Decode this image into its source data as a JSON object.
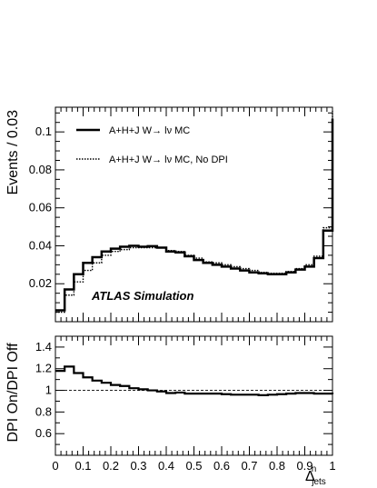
{
  "chart_data": [
    {
      "type": "step",
      "xlim": [
        0,
        1
      ],
      "ylim": [
        0,
        0.113
      ],
      "ylabel": "Events / 0.03",
      "yticks": [
        0.02,
        0.04,
        0.06,
        0.08,
        0.1
      ],
      "ytick_labels": [
        "0.02",
        "0.04",
        "0.06",
        "0.08",
        "0.1"
      ],
      "bin_edges": [
        0.0,
        0.0333,
        0.0667,
        0.1,
        0.1333,
        0.1667,
        0.2,
        0.2333,
        0.2667,
        0.3,
        0.3333,
        0.3667,
        0.4,
        0.4333,
        0.4667,
        0.5,
        0.5333,
        0.5667,
        0.6,
        0.6333,
        0.6667,
        0.7,
        0.7333,
        0.7667,
        0.8,
        0.8333,
        0.8667,
        0.9,
        0.9333,
        0.9667,
        1.0
      ],
      "series": [
        {
          "name": "A+H+J W→ lν MC",
          "style": "solid",
          "values": [
            0.006,
            0.017,
            0.025,
            0.031,
            0.034,
            0.037,
            0.0385,
            0.0395,
            0.04,
            0.0395,
            0.0398,
            0.039,
            0.037,
            0.0365,
            0.0345,
            0.0325,
            0.031,
            0.03,
            0.029,
            0.028,
            0.027,
            0.026,
            0.0255,
            0.025,
            0.025,
            0.026,
            0.0275,
            0.029,
            0.0335,
            0.048,
            0.107
          ]
        },
        {
          "name": "A+H+J W→ lν MC, No DPI",
          "style": "dotted",
          "values": [
            0.005,
            0.014,
            0.021,
            0.027,
            0.031,
            0.035,
            0.037,
            0.038,
            0.039,
            0.039,
            0.039,
            0.039,
            0.0375,
            0.037,
            0.035,
            0.0335,
            0.0315,
            0.031,
            0.03,
            0.029,
            0.028,
            0.027,
            0.026,
            0.0255,
            0.0255,
            0.0265,
            0.028,
            0.03,
            0.0345,
            0.0495,
            0.111
          ]
        }
      ],
      "annotation": "ATLAS Simulation",
      "legend_position": "top-left"
    },
    {
      "type": "step",
      "xlim": [
        0,
        1
      ],
      "ylim": [
        0.4,
        1.5
      ],
      "xlabel": "Δ",
      "xlabel_superscript": "n",
      "xlabel_subscript": "jets",
      "ylabel": "DPI On/DPI Off",
      "xticks": [
        0,
        0.1,
        0.2,
        0.3,
        0.4,
        0.5,
        0.6,
        0.7,
        0.8,
        0.9,
        1
      ],
      "xtick_labels": [
        "0",
        "0.1",
        "0.2",
        "0.3",
        "0.4",
        "0.5",
        "0.6",
        "0.7",
        "0.8",
        "0.9",
        "1"
      ],
      "yticks": [
        0.6,
        0.8,
        1,
        1.2,
        1.4
      ],
      "ytick_labels": [
        "0.6",
        "0.8",
        "1",
        "1.2",
        "1.4"
      ],
      "reference_line": 1,
      "bin_edges": [
        0.0,
        0.0333,
        0.0667,
        0.1,
        0.1333,
        0.1667,
        0.2,
        0.2333,
        0.2667,
        0.3,
        0.3333,
        0.3667,
        0.4,
        0.4333,
        0.4667,
        0.5,
        0.5333,
        0.5667,
        0.6,
        0.6333,
        0.6667,
        0.7,
        0.7333,
        0.7667,
        0.8,
        0.8333,
        0.8667,
        0.9,
        0.9333,
        0.9667,
        1.0
      ],
      "values": [
        1.18,
        1.22,
        1.16,
        1.12,
        1.09,
        1.07,
        1.05,
        1.04,
        1.02,
        1.01,
        1.0,
        0.99,
        0.975,
        0.98,
        0.97,
        0.97,
        0.97,
        0.97,
        0.965,
        0.96,
        0.96,
        0.96,
        0.955,
        0.96,
        0.965,
        0.97,
        0.975,
        0.975,
        0.97,
        0.97,
        0.965
      ]
    }
  ]
}
